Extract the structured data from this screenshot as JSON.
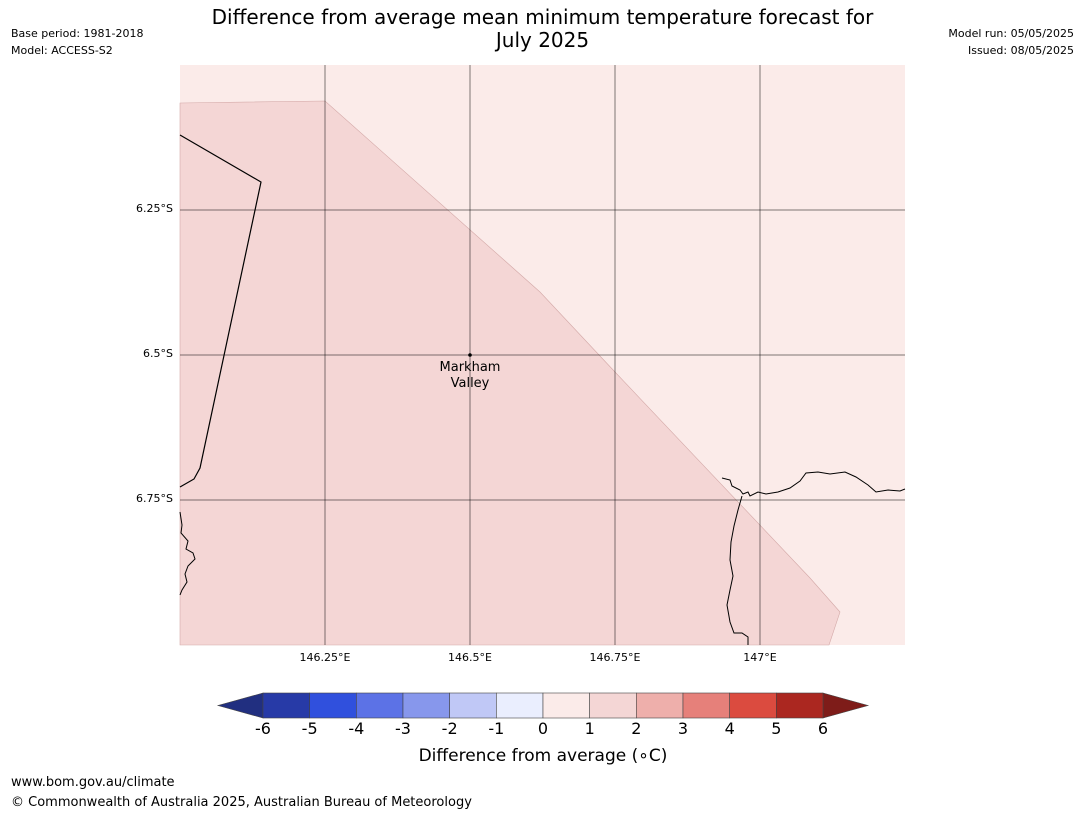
{
  "header": {
    "title_line1": "Difference from average mean minimum temperature forecast for",
    "title_line2": "July 2025",
    "base_period": "Base period: 1981-2018",
    "model": "Model: ACCESS-S2",
    "model_run": "Model run: 05/05/2025",
    "issued": "Issued: 08/05/2025"
  },
  "map": {
    "lat_labels": [
      "6.25°S",
      "6.5°S",
      "6.75°S"
    ],
    "lon_labels": [
      "146.25°E",
      "146.5°E",
      "146.75°E",
      "147°E"
    ],
    "place": {
      "name_line1": "Markham",
      "name_line2": "Valley"
    },
    "fill_colors": {
      "zero_to_one": "#fbebe9",
      "one_to_two": "#f4d6d5"
    }
  },
  "colorbar": {
    "ticks": [
      "-6",
      "-5",
      "-4",
      "-3",
      "-2",
      "-1",
      "0",
      "1",
      "2",
      "3",
      "4",
      "5",
      "6"
    ],
    "colors": [
      "#273aa7",
      "#3050dd",
      "#5c72e6",
      "#8797ec",
      "#c0c8f6",
      "#eaeefe",
      "#fbebe9",
      "#f4d6d5",
      "#eeafab",
      "#e6807a",
      "#db4b3f",
      "#ab2720"
    ],
    "low_extend_color": "#212f80",
    "high_extend_color": "#7e1c19",
    "label": "Difference from average (∘C)"
  },
  "footer": {
    "url": "www.bom.gov.au/climate",
    "copyright": "© Commonwealth of Australia 2025, Australian Bureau of Meteorology"
  }
}
